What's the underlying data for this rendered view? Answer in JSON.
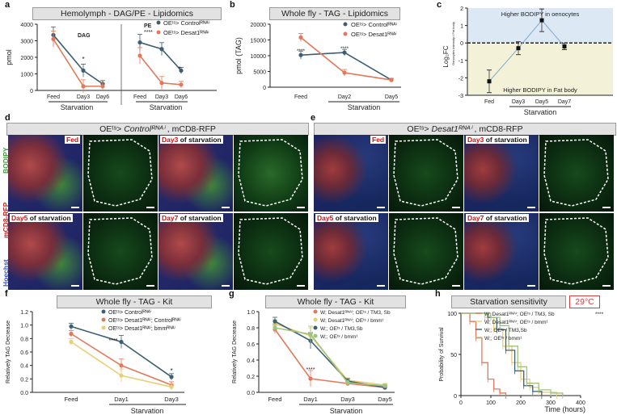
{
  "panels": {
    "a": {
      "letter": "a",
      "title": "Hemolymph - DAG/PE - Lipidomics",
      "ylabel": "pmol",
      "xlabel": "Starvation",
      "sub_dag": "DAG",
      "sub_pe": "PE",
      "legend": [
        "OEᵗˢ> Controlᴿᴺᴬⁱ",
        "OEᵗˢ> Desat1ᴿᴺᴬⁱ"
      ],
      "ticks_x": [
        "Feed",
        "Day3",
        "Day6",
        "Feed",
        "Day3",
        "Day6"
      ],
      "ticks_y": [
        "0",
        "1000",
        "2000",
        "3000",
        "4000"
      ],
      "stars": [
        "*",
        "****",
        "*"
      ]
    },
    "b": {
      "letter": "b",
      "title": "Whole fly - TAG - Lipidomics",
      "ylabel": "pmol (TAG)",
      "xlabel": "Starvation",
      "legend": [
        "OEᵗˢ> Controlᴿᴺᴬⁱ",
        "OEᵗˢ> Desat1ᴿᴺᴬⁱ"
      ],
      "ticks_x": [
        "Feed",
        "Day2",
        "Day5"
      ],
      "ticks_y": [
        "0",
        "5000",
        "10000",
        "15000",
        "20000"
      ],
      "stars": [
        "****",
        "****"
      ]
    },
    "c": {
      "letter": "c",
      "top_text": "Higher BODIPY in oenocytes",
      "bottom_text": "Higher BODIPY in Fat body",
      "ylabel": "Log₂FC",
      "ylabel_sub": "Oenocytes intensity / Fat body",
      "xlabel": "Starvation",
      "ticks_x": [
        "Fed",
        "Day3",
        "Day5",
        "Day7"
      ],
      "ticks_y": [
        "-3",
        "-2",
        "-1",
        "0",
        "1",
        "2"
      ]
    },
    "d": {
      "letter": "d",
      "title_pre": "OEᵗˢ> ",
      "title_it": "Controlᴿᴺᴬⁱ",
      "title_post": " , mCD8-RFP",
      "side": [
        "BODIPY",
        "mCD8-RFP",
        "Hoechst"
      ],
      "labels": [
        {
          "red": "Fed",
          "rest": ""
        },
        {
          "red": "Day3",
          "rest": " of starvation"
        },
        {
          "red": "Day5",
          "rest": " of starvation"
        },
        {
          "red": "Day7",
          "rest": " of starvation"
        }
      ]
    },
    "e": {
      "letter": "e",
      "title_pre": "OEᵗˢ> ",
      "title_it": "Desat1ᴿᴺᴬⁱ",
      "title_post": " , mCD8-RFP",
      "labels": [
        {
          "red": "Fed",
          "rest": ""
        },
        {
          "red": "Day3",
          "rest": " of starvation"
        },
        {
          "red": "Day5",
          "rest": " of starvation"
        },
        {
          "red": "Day7",
          "rest": " of starvation"
        }
      ]
    },
    "f": {
      "letter": "f",
      "title": "Whole fly - TAG - Kit",
      "ylabel": "Relatively TAG Decrease",
      "xlabel": "Starvation",
      "legend": [
        "OEᵗˢ> Controlᴿᴺᴬⁱ",
        "OEᵗˢ> Desat1ᴿᴺᴬⁱ; Controlᴿᴺᴬⁱ",
        "OEᵗˢ> Desat1ᴿᴺᴬⁱ; bmmᴿᴺᴬⁱ"
      ],
      "ticks_x": [
        "Feed",
        "Day1",
        "Day3"
      ],
      "ticks_y": [
        "0.0",
        "0.2",
        "0.4",
        "0.6",
        "0.8",
        "1.0",
        "1.2"
      ],
      "stars": [
        "****",
        "*"
      ]
    },
    "g": {
      "letter": "g",
      "title": "Whole fly - TAG - Kit",
      "ylabel": "Relatively TAG Decrease",
      "xlabel": "Starvation",
      "legend": [
        "W; Desat1ᴿᴺᴬⁱ; OEᵗˢ / TM3, Sb",
        "W; Desat1ᴿᴺᴬⁱ; OEᵗˢ / bmm¹",
        "W;; OEᵗˢ / TM3,Sb",
        "W;; OEᵗˢ / bmm¹"
      ],
      "ticks_x": [
        "Feed",
        "Day1",
        "Day3",
        "Day5"
      ],
      "ticks_y": [
        "0.0",
        "0.2",
        "0.4",
        "0.6",
        "0.8",
        "1.0"
      ],
      "stars": [
        "****"
      ]
    },
    "h": {
      "letter": "h",
      "title": "Starvation sensitivity",
      "temp": "29°C",
      "ylabel": "Probability of Survival",
      "xlabel": "Time (hours)",
      "legend": [
        "W; Desat1ᴿᴺᴬⁱ; OEᵗˢ / TM3, Sb",
        "W; Desat1ᴿᴺᴬⁱ; OEᵗˢ / bmm¹",
        "W;; OEᵗˢ / TM3,Sb",
        "W;; OEᵗˢ / bmm¹"
      ],
      "legend_star": "****",
      "ticks_x": [
        "0",
        "100",
        "200",
        "300",
        "400"
      ],
      "ticks_y": [
        "0",
        "50",
        "100"
      ]
    }
  },
  "colors": {
    "blue": "#3e5f73",
    "orange": "#e2795a",
    "yellow": "#e8cf76",
    "green": "#9fc37e",
    "red": "#d01010"
  },
  "chart_data": [
    {
      "panel": "a",
      "type": "line",
      "title": "Hemolymph - DAG/PE - Lipidomics",
      "ylabel": "pmol",
      "ylim": [
        0,
        4000
      ],
      "groups": [
        {
          "name": "DAG",
          "categories": [
            "Feed",
            "Day3",
            "Day6"
          ],
          "series": [
            {
              "name": "Control",
              "values": [
                3350,
                1200,
                400
              ]
            },
            {
              "name": "Desat1",
              "values": [
                3100,
                250,
                250
              ]
            }
          ]
        },
        {
          "name": "PE",
          "categories": [
            "Feed",
            "Day3",
            "Day6"
          ],
          "series": [
            {
              "name": "Control",
              "values": [
                2900,
                2500,
                1200
              ]
            },
            {
              "name": "Desat1",
              "values": [
                2100,
                450,
                350
              ]
            }
          ]
        }
      ]
    },
    {
      "panel": "b",
      "type": "line",
      "title": "Whole fly - TAG - Lipidomics",
      "categories": [
        "Feed",
        "Day2",
        "Day5"
      ],
      "ylim": [
        0,
        20000
      ],
      "series": [
        {
          "name": "Control",
          "values": [
            10200,
            11000,
            2300
          ]
        },
        {
          "name": "Desat1",
          "values": [
            15800,
            4600,
            2300
          ]
        }
      ]
    },
    {
      "panel": "c",
      "type": "scatter",
      "categories": [
        "Fed",
        "Day3",
        "Day5",
        "Day7"
      ],
      "ylim": [
        -3,
        2
      ],
      "values": [
        -2.2,
        -0.3,
        1.3,
        -0.2
      ]
    },
    {
      "panel": "f",
      "type": "line",
      "title": "Whole fly - TAG - Kit",
      "categories": [
        "Feed",
        "Day1",
        "Day3"
      ],
      "ylim": [
        0,
        1.2
      ],
      "series": [
        {
          "name": "Control",
          "values": [
            0.98,
            0.75,
            0.23
          ]
        },
        {
          "name": "Desat1; Control",
          "values": [
            0.87,
            0.4,
            0.11
          ]
        },
        {
          "name": "Desat1; bmm",
          "values": [
            0.75,
            0.25,
            0.08
          ]
        }
      ]
    },
    {
      "panel": "g",
      "type": "line",
      "title": "Whole fly - TAG - Kit",
      "categories": [
        "Feed",
        "Day1",
        "Day3",
        "Day5"
      ],
      "ylim": [
        0,
        1.0
      ],
      "series": [
        {
          "name": "Desat1;TM3",
          "values": [
            0.78,
            0.17,
            0.11,
            0.06
          ]
        },
        {
          "name": "Desat1;bmm",
          "values": [
            0.85,
            0.7,
            0.15,
            0.09
          ]
        },
        {
          "name": "TM3",
          "values": [
            0.88,
            0.64,
            0.14,
            0.06
          ]
        },
        {
          "name": "bmm",
          "values": [
            0.8,
            0.72,
            0.12,
            0.08
          ]
        }
      ]
    },
    {
      "panel": "h",
      "type": "line",
      "title": "Starvation sensitivity",
      "xlim": [
        0,
        400
      ],
      "ylim": [
        0,
        100
      ],
      "series": [
        {
          "name": "Desat1;TM3",
          "x": [
            0,
            30,
            50,
            70,
            90,
            110,
            130,
            150
          ],
          "values": [
            100,
            90,
            70,
            40,
            20,
            8,
            3,
            0
          ]
        },
        {
          "name": "Desat1;bmm",
          "x": [
            0,
            80,
            110,
            140,
            170,
            200,
            230,
            260,
            320
          ],
          "values": [
            100,
            95,
            80,
            60,
            40,
            20,
            10,
            4,
            0
          ]
        },
        {
          "name": "TM3",
          "x": [
            0,
            90,
            120,
            150,
            180,
            210,
            240,
            270
          ],
          "values": [
            100,
            95,
            80,
            55,
            30,
            12,
            5,
            0
          ]
        },
        {
          "name": "bmm",
          "x": [
            0,
            100,
            130,
            160,
            190,
            220,
            260,
            300,
            340
          ],
          "values": [
            100,
            95,
            85,
            60,
            35,
            15,
            7,
            3,
            0
          ]
        }
      ]
    }
  ]
}
